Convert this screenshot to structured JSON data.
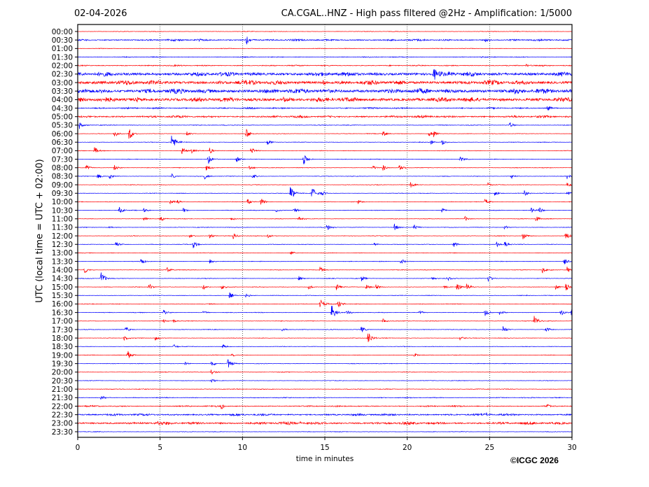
{
  "header": {
    "date": "02-04-2026",
    "title": "CA.CGAL..HNZ - High pass filtered @2Hz - Amplification: 1/5000"
  },
  "copyright": "©ICGC 2026",
  "chart_data": {
    "type": "line",
    "subtype": "helicorder",
    "xlabel": "time in minutes",
    "ylabel": "UTC (local time = UTC + 02:00)",
    "xlim": [
      0,
      30
    ],
    "x_ticks": [
      "0",
      "5",
      "10",
      "15",
      "20",
      "25",
      "30"
    ],
    "grid": "vertical dotted lines at 5-minute ticks",
    "colors": {
      "even_rows": "#ff0000",
      "odd_rows": "#0000ff"
    },
    "rows": [
      {
        "label": "00:00",
        "noise": 0.04,
        "events": []
      },
      {
        "label": "00:30",
        "noise": 0.12,
        "events": [
          [
            10.2,
            0.7
          ],
          [
            7.3,
            0.2
          ],
          [
            24.7,
            0.25
          ]
        ]
      },
      {
        "label": "01:00",
        "noise": 0.04,
        "events": []
      },
      {
        "label": "01:30",
        "noise": 0.06,
        "events": [
          [
            24.5,
            0.15
          ]
        ]
      },
      {
        "label": "02:00",
        "noise": 0.08,
        "events": [
          [
            27.2,
            0.2
          ]
        ]
      },
      {
        "label": "02:30",
        "noise": 0.28,
        "events": [
          [
            21.6,
            0.8
          ],
          [
            22.5,
            0.4
          ]
        ]
      },
      {
        "label": "03:00",
        "noise": 0.3,
        "events": [
          [
            14.9,
            0.4
          ],
          [
            8.6,
            0.3
          ]
        ]
      },
      {
        "label": "03:30",
        "noise": 0.32,
        "events": [
          [
            26.5,
            0.4
          ],
          [
            1.3,
            0.3
          ]
        ]
      },
      {
        "label": "04:00",
        "noise": 0.3,
        "events": [
          [
            12.5,
            0.5
          ],
          [
            3.6,
            0.3
          ]
        ]
      },
      {
        "label": "04:30",
        "noise": 0.1,
        "events": [
          [
            28.5,
            0.4
          ]
        ]
      },
      {
        "label": "05:00",
        "noise": 0.15,
        "events": []
      },
      {
        "label": "05:30",
        "noise": 0.05,
        "events": [
          [
            0.1,
            0.5
          ],
          [
            26.2,
            0.4
          ]
        ]
      },
      {
        "label": "06:00",
        "noise": 0.04,
        "events": [
          [
            2.2,
            0.5
          ],
          [
            3.1,
            0.8
          ],
          [
            6.6,
            0.3
          ],
          [
            10.2,
            0.8
          ],
          [
            18.5,
            0.5
          ],
          [
            21.3,
            0.4
          ],
          [
            21.6,
            0.4
          ]
        ]
      },
      {
        "label": "06:30",
        "noise": 0.04,
        "events": [
          [
            5.7,
            1.2
          ],
          [
            11.5,
            0.4
          ],
          [
            21.4,
            0.3
          ],
          [
            22.1,
            0.4
          ]
        ]
      },
      {
        "label": "07:00",
        "noise": 0.04,
        "events": [
          [
            1.0,
            0.5
          ],
          [
            6.3,
            0.5
          ],
          [
            6.9,
            0.4
          ],
          [
            8.0,
            0.4
          ],
          [
            10.5,
            0.5
          ]
        ]
      },
      {
        "label": "07:30",
        "noise": 0.04,
        "events": [
          [
            7.9,
            0.6
          ],
          [
            9.6,
            0.5
          ],
          [
            13.7,
            0.7
          ],
          [
            23.2,
            0.4
          ]
        ]
      },
      {
        "label": "08:00",
        "noise": 0.04,
        "events": [
          [
            0.5,
            0.4
          ],
          [
            2.2,
            0.4
          ],
          [
            7.8,
            0.4
          ],
          [
            10.4,
            0.3
          ],
          [
            17.9,
            0.3
          ],
          [
            18.5,
            0.4
          ],
          [
            19.5,
            0.4
          ]
        ]
      },
      {
        "label": "08:30",
        "noise": 0.04,
        "events": [
          [
            1.2,
            0.4
          ],
          [
            1.9,
            0.4
          ],
          [
            5.7,
            0.3
          ],
          [
            7.7,
            0.4
          ],
          [
            10.6,
            0.4
          ],
          [
            26.3,
            0.3
          ],
          [
            29.7,
            0.4
          ]
        ]
      },
      {
        "label": "09:00",
        "noise": 0.04,
        "events": [
          [
            20.2,
            0.4
          ],
          [
            24.9,
            0.3
          ],
          [
            29.7,
            0.3
          ]
        ]
      },
      {
        "label": "09:30",
        "noise": 0.04,
        "events": [
          [
            12.9,
            1.0
          ],
          [
            14.2,
            1.0
          ],
          [
            14.8,
            0.4
          ],
          [
            25.3,
            0.3
          ],
          [
            27.1,
            0.4
          ],
          [
            29.7,
            0.4
          ]
        ]
      },
      {
        "label": "10:00",
        "noise": 0.04,
        "events": [
          [
            5.6,
            0.3
          ],
          [
            6.0,
            0.3
          ],
          [
            10.3,
            0.4
          ],
          [
            11.1,
            0.5
          ],
          [
            17.0,
            0.3
          ],
          [
            24.7,
            0.4
          ]
        ]
      },
      {
        "label": "10:30",
        "noise": 0.04,
        "events": [
          [
            2.5,
            0.5
          ],
          [
            4.0,
            0.3
          ],
          [
            6.4,
            0.3
          ],
          [
            12.0,
            0.3
          ],
          [
            13.1,
            0.4
          ],
          [
            22.1,
            0.3
          ],
          [
            27.5,
            0.4
          ],
          [
            28.0,
            0.4
          ]
        ]
      },
      {
        "label": "11:00",
        "noise": 0.04,
        "events": [
          [
            4.0,
            0.3
          ],
          [
            5.0,
            0.4
          ],
          [
            9.3,
            0.3
          ],
          [
            13.4,
            0.3
          ],
          [
            23.5,
            0.3
          ],
          [
            27.8,
            0.4
          ]
        ]
      },
      {
        "label": "11:30",
        "noise": 0.04,
        "events": [
          [
            1.9,
            0.2
          ],
          [
            15.1,
            0.5
          ],
          [
            19.2,
            0.5
          ],
          [
            20.4,
            0.4
          ],
          [
            25.9,
            0.3
          ]
        ]
      },
      {
        "label": "12:00",
        "noise": 0.04,
        "events": [
          [
            6.8,
            0.3
          ],
          [
            8.0,
            0.3
          ],
          [
            9.4,
            0.5
          ],
          [
            11.5,
            0.3
          ],
          [
            27.0,
            0.5
          ],
          [
            29.6,
            0.6
          ]
        ]
      },
      {
        "label": "12:30",
        "noise": 0.04,
        "events": [
          [
            2.3,
            0.4
          ],
          [
            7.0,
            0.5
          ],
          [
            18.0,
            0.2
          ],
          [
            22.8,
            0.4
          ],
          [
            25.4,
            0.4
          ],
          [
            25.9,
            0.4
          ]
        ]
      },
      {
        "label": "13:00",
        "noise": 0.04,
        "events": [
          [
            12.9,
            0.3
          ]
        ]
      },
      {
        "label": "13:30",
        "noise": 0.04,
        "events": [
          [
            3.8,
            0.5
          ],
          [
            8.0,
            0.4
          ],
          [
            19.6,
            0.4
          ],
          [
            29.5,
            0.5
          ]
        ]
      },
      {
        "label": "14:00",
        "noise": 0.04,
        "events": [
          [
            0.4,
            0.4
          ],
          [
            5.4,
            0.4
          ],
          [
            14.7,
            0.4
          ],
          [
            28.2,
            0.4
          ],
          [
            29.7,
            0.4
          ]
        ]
      },
      {
        "label": "14:30",
        "noise": 0.04,
        "events": [
          [
            1.4,
            0.9
          ],
          [
            13.4,
            0.3
          ],
          [
            17.2,
            0.4
          ],
          [
            21.5,
            0.3
          ],
          [
            22.4,
            0.4
          ],
          [
            24.9,
            0.5
          ]
        ]
      },
      {
        "label": "15:00",
        "noise": 0.04,
        "events": [
          [
            4.3,
            0.5
          ],
          [
            7.6,
            0.4
          ],
          [
            8.7,
            0.4
          ],
          [
            14.0,
            0.3
          ],
          [
            15.7,
            0.4
          ],
          [
            17.5,
            0.4
          ],
          [
            18.1,
            0.3
          ],
          [
            22.2,
            0.3
          ],
          [
            23.0,
            0.5
          ],
          [
            23.6,
            0.4
          ],
          [
            29.0,
            0.3
          ],
          [
            29.6,
            0.5
          ]
        ]
      },
      {
        "label": "15:30",
        "noise": 0.04,
        "events": [
          [
            9.2,
            0.4
          ],
          [
            10.2,
            0.3
          ]
        ]
      },
      {
        "label": "16:00",
        "noise": 0.05,
        "events": [
          [
            14.7,
            0.7
          ],
          [
            15.8,
            0.5
          ]
        ]
      },
      {
        "label": "16:30",
        "noise": 0.04,
        "events": [
          [
            5.2,
            0.3
          ],
          [
            7.6,
            0.3
          ],
          [
            15.4,
            1.0
          ],
          [
            16.3,
            0.3
          ],
          [
            20.7,
            0.3
          ],
          [
            24.7,
            0.5
          ],
          [
            25.6,
            0.3
          ],
          [
            29.3,
            0.5
          ],
          [
            29.95,
            0.5
          ]
        ]
      },
      {
        "label": "17:00",
        "noise": 0.04,
        "events": [
          [
            5.2,
            0.2
          ],
          [
            5.8,
            0.2
          ],
          [
            18.5,
            0.4
          ],
          [
            27.7,
            0.8
          ]
        ]
      },
      {
        "label": "17:30",
        "noise": 0.04,
        "events": [
          [
            2.9,
            0.4
          ],
          [
            12.4,
            0.3
          ],
          [
            17.2,
            0.4
          ],
          [
            25.8,
            0.5
          ],
          [
            28.4,
            0.4
          ]
        ]
      },
      {
        "label": "18:00",
        "noise": 0.04,
        "events": [
          [
            2.8,
            0.4
          ],
          [
            4.7,
            0.3
          ],
          [
            17.6,
            0.9
          ],
          [
            23.2,
            0.3
          ]
        ]
      },
      {
        "label": "18:30",
        "noise": 0.04,
        "events": [
          [
            5.8,
            0.3
          ],
          [
            8.8,
            0.3
          ]
        ]
      },
      {
        "label": "19:00",
        "noise": 0.04,
        "events": [
          [
            3.0,
            0.7
          ],
          [
            9.3,
            0.3
          ],
          [
            20.4,
            0.3
          ]
        ]
      },
      {
        "label": "19:30",
        "noise": 0.04,
        "events": [
          [
            6.5,
            0.2
          ],
          [
            8.1,
            0.4
          ],
          [
            9.1,
            0.6
          ]
        ]
      },
      {
        "label": "20:00",
        "noise": 0.04,
        "events": [
          [
            8.1,
            0.4
          ]
        ]
      },
      {
        "label": "20:30",
        "noise": 0.04,
        "events": [
          [
            8.1,
            0.3
          ]
        ]
      },
      {
        "label": "21:00",
        "noise": 0.05,
        "events": []
      },
      {
        "label": "21:30",
        "noise": 0.06,
        "events": [
          [
            1.4,
            0.3
          ]
        ]
      },
      {
        "label": "22:00",
        "noise": 0.09,
        "events": [
          [
            8.7,
            0.4
          ],
          [
            28.5,
            0.3
          ]
        ]
      },
      {
        "label": "22:30",
        "noise": 0.14,
        "events": [
          [
            24.7,
            0.25
          ]
        ]
      },
      {
        "label": "23:00",
        "noise": 0.18,
        "events": [
          [
            4.8,
            0.25
          ],
          [
            13.5,
            0.2
          ]
        ]
      },
      {
        "label": "23:30",
        "noise": 0.04,
        "events": []
      }
    ]
  }
}
